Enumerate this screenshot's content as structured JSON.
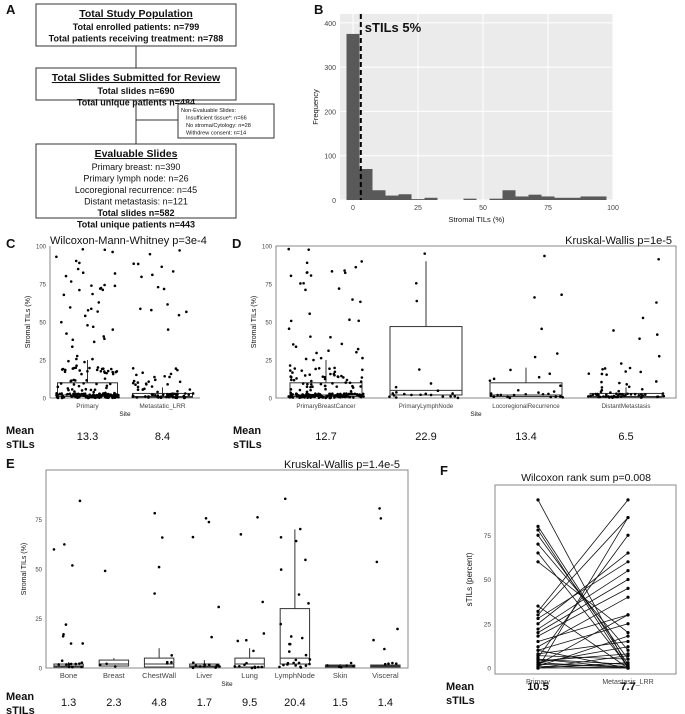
{
  "panelA": {
    "letter": "A",
    "box1": {
      "title": "Total Study Population",
      "lines": [
        "Total enrolled patients: n=799",
        "Total patients receiving treatment: n=788"
      ]
    },
    "box2": {
      "title": "Total Slides Submitted for Review",
      "lines": [
        "Total slides n=690",
        "Total unique patients n=484"
      ]
    },
    "sidebox": {
      "lines": [
        "Non-Evaluable Slides:",
        "Insufficient tissue*: n=66",
        "No stroma/Cytology: n=28",
        "Withdrew consent: n=14"
      ]
    },
    "box3": {
      "title": "Evaluable Slides",
      "lines": [
        "Primary breast: n=390",
        "Primary lymph node: n=26",
        "Locoregional recurrence: n=45",
        "Distant metastasis: n=121",
        "Total slides n=582",
        "Total unique patients n=443"
      ]
    }
  },
  "chart_data": [
    {
      "panel": "B",
      "type": "bar",
      "annotation": "sTILs 5%",
      "cutoff": 3,
      "xlabel": "Stromal TILs (%)",
      "ylabel": "Frequency",
      "xlim": [
        -5,
        100
      ],
      "ylim": [
        0,
        420
      ],
      "xticks": [
        0,
        25,
        50,
        75,
        100
      ],
      "yticks": [
        0,
        100,
        200,
        300,
        400
      ],
      "bin_width": 5,
      "bin_starts": [
        -2.5,
        2.5,
        7.5,
        12.5,
        17.5,
        22.5,
        27.5,
        32.5,
        37.5,
        42.5,
        47.5,
        52.5,
        57.5,
        62.5,
        67.5,
        72.5,
        77.5,
        82.5,
        87.5,
        92.5
      ],
      "values": [
        375,
        70,
        22,
        10,
        13,
        2,
        5,
        0,
        0,
        3,
        0,
        3,
        22,
        8,
        12,
        8,
        5,
        5,
        8,
        8
      ],
      "grid": true
    },
    {
      "panel": "C",
      "type": "scatter",
      "title": "Wilcoxon-Mann-Whitney p=3e-4",
      "xlabel": "Site",
      "ylabel": "Stromal TILs (%)",
      "ylim": [
        0,
        100
      ],
      "yticks": [
        0,
        25,
        50,
        75,
        100
      ],
      "categories": [
        "Primary",
        "Metastatic_LRR"
      ],
      "boxes": [
        {
          "q1": 1,
          "median": 2,
          "q3": 10,
          "whisker_low": 0,
          "whisker_high": 25
        },
        {
          "q1": 0.5,
          "median": 1,
          "q3": 3,
          "whisker_low": 0,
          "whisker_high": 7
        }
      ],
      "mean_label": "Mean sTILs",
      "means": [
        "13.3",
        "8.4"
      ]
    },
    {
      "panel": "D",
      "type": "scatter",
      "title": "Kruskal-Wallis p=1e-5",
      "xlabel": "Site",
      "ylabel": "Stromal TILs (%)",
      "ylim": [
        0,
        100
      ],
      "yticks": [
        0,
        25,
        50,
        75,
        100
      ],
      "categories": [
        "PrimaryBreastCancer",
        "PrimaryLymphNode",
        "LocoregionalRecurrence",
        "DistantMetastasis"
      ],
      "boxes": [
        {
          "q1": 1,
          "median": 2,
          "q3": 10,
          "whisker_low": 0,
          "whisker_high": 25
        },
        {
          "q1": 2,
          "median": 5,
          "q3": 47,
          "whisker_low": 0,
          "whisker_high": 90
        },
        {
          "q1": 1,
          "median": 2,
          "q3": 10,
          "whisker_low": 0,
          "whisker_high": 20
        },
        {
          "q1": 0.5,
          "median": 1,
          "q3": 3,
          "whisker_low": 0,
          "whisker_high": 7
        }
      ],
      "mean_label": "Mean sTILs",
      "means": [
        "12.7",
        "22.9",
        "13.4",
        "6.5"
      ]
    },
    {
      "panel": "E",
      "type": "scatter",
      "title": "Kruskal-Wallis p=1.4e-5",
      "xlabel": "Site",
      "ylabel": "Stromal TILs (%)",
      "ylim": [
        0,
        100
      ],
      "yticks": [
        0,
        25,
        50,
        75
      ],
      "categories": [
        "Bone",
        "Breast",
        "ChestWall",
        "Liver",
        "Lung",
        "LymphNode",
        "Skin",
        "Visceral"
      ],
      "boxes": [
        {
          "q1": 0.5,
          "median": 1,
          "q3": 2,
          "whisker_low": 0,
          "whisker_high": 3
        },
        {
          "q1": 1,
          "median": 2,
          "q3": 4,
          "whisker_low": 0,
          "whisker_high": 5
        },
        {
          "q1": 0.5,
          "median": 2,
          "q3": 5,
          "whisker_low": 0,
          "whisker_high": 10
        },
        {
          "q1": 0.5,
          "median": 1,
          "q3": 2,
          "whisker_low": 0,
          "whisker_high": 4
        },
        {
          "q1": 0.5,
          "median": 2,
          "q3": 5,
          "whisker_low": 0,
          "whisker_high": 10
        },
        {
          "q1": 2,
          "median": 5,
          "q3": 30,
          "whisker_low": 0,
          "whisker_high": 70
        },
        {
          "q1": 0.5,
          "median": 1,
          "q3": 1.5,
          "whisker_low": 0,
          "whisker_high": 2
        },
        {
          "q1": 0.5,
          "median": 1,
          "q3": 1.5,
          "whisker_low": 0,
          "whisker_high": 2
        }
      ],
      "mean_label": "Mean sTILs",
      "means": [
        "1.3",
        "2.3",
        "4.8",
        "1.7",
        "9.5",
        "20.4",
        "1.5",
        "1.4"
      ]
    },
    {
      "panel": "F",
      "type": "line",
      "title": "Wilcoxon rank  sum p=0.008",
      "ylabel": "sTILs (percent)",
      "ylim": [
        0,
        100
      ],
      "yticks": [
        0,
        25,
        50,
        75
      ],
      "categories": [
        "Primary",
        "Metastasis_LRR"
      ],
      "pairs": [
        [
          95,
          0
        ],
        [
          80,
          2
        ],
        [
          78,
          0
        ],
        [
          75,
          5
        ],
        [
          70,
          10
        ],
        [
          65,
          1
        ],
        [
          60,
          20
        ],
        [
          35,
          0
        ],
        [
          32,
          95
        ],
        [
          30,
          85
        ],
        [
          28,
          60
        ],
        [
          25,
          65
        ],
        [
          22,
          55
        ],
        [
          20,
          50
        ],
        [
          18,
          45
        ],
        [
          15,
          30
        ],
        [
          12,
          40
        ],
        [
          10,
          0
        ],
        [
          10,
          25
        ],
        [
          8,
          15
        ],
        [
          7,
          5
        ],
        [
          6,
          75
        ],
        [
          5,
          2
        ],
        [
          5,
          0
        ],
        [
          4,
          8
        ],
        [
          3,
          12
        ],
        [
          3,
          0
        ],
        [
          2,
          30
        ],
        [
          2,
          1
        ],
        [
          1,
          18
        ],
        [
          1,
          0
        ],
        [
          0,
          3
        ],
        [
          0,
          0
        ],
        [
          0,
          85
        ],
        [
          0,
          7
        ]
      ],
      "mean_label": "Mean sTILs",
      "means": [
        "10.5",
        "7.7"
      ]
    }
  ]
}
